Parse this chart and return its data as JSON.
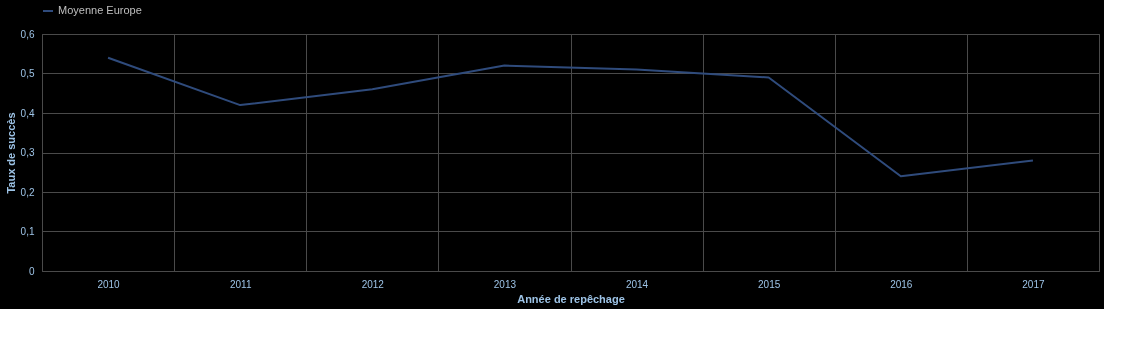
{
  "chart_data": {
    "type": "line",
    "xlabel": "Année de repêchage",
    "ylabel": "Taux de succès",
    "categories": [
      "2010",
      "2011",
      "2012",
      "2013",
      "2014",
      "2015",
      "2016",
      "2017"
    ],
    "series": [
      {
        "name": "Moyenne Europe",
        "color": "#2f4b7c",
        "values": [
          0.54,
          0.42,
          0.46,
          0.52,
          0.51,
          0.49,
          0.24,
          0.28
        ]
      }
    ],
    "ylim": [
      0,
      0.6
    ],
    "yticks": [
      {
        "value": 0,
        "label": "0"
      },
      {
        "value": 0.1,
        "label": "0,1"
      },
      {
        "value": 0.2,
        "label": "0,2"
      },
      {
        "value": 0.3,
        "label": "0,3"
      },
      {
        "value": 0.4,
        "label": "0,4"
      },
      {
        "value": 0.5,
        "label": "0,5"
      },
      {
        "value": 0.6,
        "label": "0,6"
      }
    ],
    "grid": true,
    "legend": "top",
    "marker": "none",
    "line_style": "solid"
  }
}
